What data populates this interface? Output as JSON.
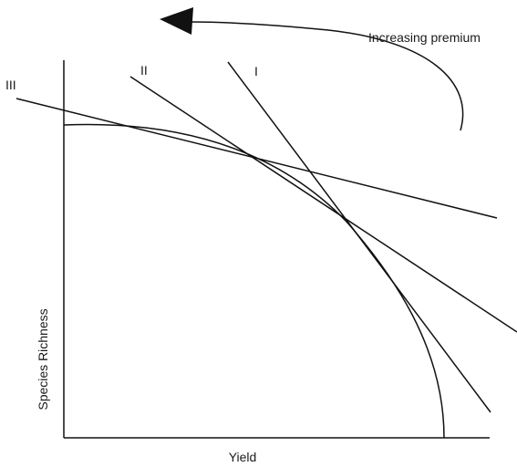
{
  "annotation": {
    "arrow_label": "Increasing premium"
  },
  "axes": {
    "xlabel": "Yield",
    "ylabel": "Species Richness"
  },
  "lines": [
    {
      "label": "I"
    },
    {
      "label": "II"
    },
    {
      "label": "III"
    }
  ],
  "colors": {
    "ink": "#111111",
    "background": "#ffffff"
  }
}
